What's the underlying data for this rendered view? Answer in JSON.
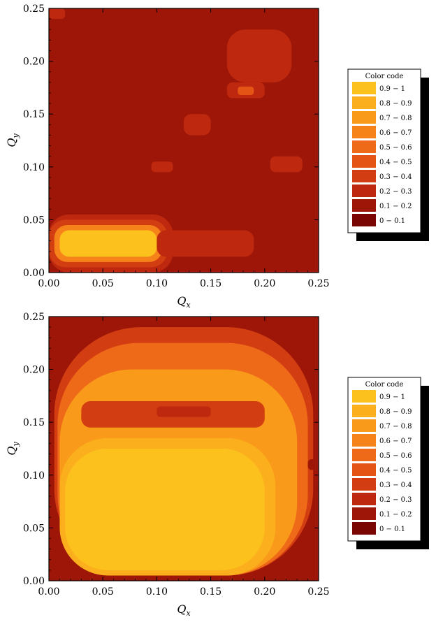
{
  "chart_data": [
    {
      "type": "heatmap",
      "subtype": "filled-contour",
      "xlabel": "Q",
      "xlabel_sub": "x",
      "ylabel": "Q",
      "ylabel_sub": "y",
      "xlim": [
        0.0,
        0.25
      ],
      "ylim": [
        0.0,
        0.25
      ],
      "xticks": [
        "0.00",
        "0.05",
        "0.10",
        "0.15",
        "0.20",
        "0.25"
      ],
      "yticks": [
        "0.00",
        "0.05",
        "0.10",
        "0.15",
        "0.20",
        "0.25"
      ],
      "background_level": 0.15,
      "regions": [
        {
          "level": 0.25,
          "x": [
            0.0,
            0.115
          ],
          "y": [
            0.0,
            0.055
          ]
        },
        {
          "level": 0.35,
          "x": [
            0.0,
            0.11
          ],
          "y": [
            0.005,
            0.05
          ]
        },
        {
          "level": 0.6,
          "x": [
            0.005,
            0.105
          ],
          "y": [
            0.01,
            0.045
          ]
        },
        {
          "level": 0.95,
          "x": [
            0.01,
            0.1
          ],
          "y": [
            0.015,
            0.04
          ]
        },
        {
          "level": 0.25,
          "x": [
            0.1,
            0.19
          ],
          "y": [
            0.015,
            0.04
          ]
        },
        {
          "level": 0.25,
          "x": [
            0.165,
            0.2
          ],
          "y": [
            0.165,
            0.18
          ]
        },
        {
          "level": 0.45,
          "x": [
            0.175,
            0.19
          ],
          "y": [
            0.168,
            0.176
          ]
        },
        {
          "level": 0.25,
          "x": [
            0.165,
            0.225
          ],
          "y": [
            0.18,
            0.23
          ]
        },
        {
          "level": 0.25,
          "x": [
            0.125,
            0.15
          ],
          "y": [
            0.13,
            0.15
          ]
        },
        {
          "level": 0.25,
          "x": [
            0.205,
            0.235
          ],
          "y": [
            0.095,
            0.11
          ]
        },
        {
          "level": 0.25,
          "x": [
            0.095,
            0.115
          ],
          "y": [
            0.095,
            0.105
          ]
        },
        {
          "level": 0.25,
          "x": [
            0.0,
            0.015
          ],
          "y": [
            0.24,
            0.25
          ]
        }
      ],
      "legend": {
        "title": "Color code",
        "position": "right",
        "entries": [
          {
            "label": "0.9 − 1",
            "color": "#fcc11d"
          },
          {
            "label": "0.8 − 0.9",
            "color": "#fbaf1c"
          },
          {
            "label": "0.7 − 0.8",
            "color": "#f99a1b"
          },
          {
            "label": "0.6 − 0.7",
            "color": "#f6821a"
          },
          {
            "label": "0.5 − 0.6",
            "color": "#ef6a18"
          },
          {
            "label": "0.4 − 0.5",
            "color": "#e45415"
          },
          {
            "label": "0.3 − 0.4",
            "color": "#d33d12"
          },
          {
            "label": "0.2 − 0.3",
            "color": "#bd280e"
          },
          {
            "label": "0.1 − 0.2",
            "color": "#9e1608"
          },
          {
            "label": "0 − 0.1",
            "color": "#7a0604"
          }
        ]
      }
    },
    {
      "type": "heatmap",
      "subtype": "filled-contour",
      "xlabel": "Q",
      "xlabel_sub": "x",
      "ylabel": "Q",
      "ylabel_sub": "y",
      "xlim": [
        0.0,
        0.25
      ],
      "ylim": [
        0.0,
        0.25
      ],
      "xticks": [
        "0.00",
        "0.05",
        "0.10",
        "0.15",
        "0.20",
        "0.25"
      ],
      "yticks": [
        "0.00",
        "0.05",
        "0.10",
        "0.15",
        "0.20",
        "0.25"
      ],
      "background_level": 0.15,
      "regions": [
        {
          "level": 0.35,
          "x": [
            0.005,
            0.245
          ],
          "y": [
            0.005,
            0.24
          ]
        },
        {
          "level": 0.55,
          "x": [
            0.008,
            0.24
          ],
          "y": [
            0.005,
            0.225
          ]
        },
        {
          "level": 0.75,
          "x": [
            0.01,
            0.23
          ],
          "y": [
            0.005,
            0.2
          ]
        },
        {
          "level": 0.35,
          "x": [
            0.03,
            0.2
          ],
          "y": [
            0.145,
            0.17
          ]
        },
        {
          "level": 0.25,
          "x": [
            0.1,
            0.15
          ],
          "y": [
            0.155,
            0.165
          ]
        },
        {
          "level": 0.85,
          "x": [
            0.01,
            0.21
          ],
          "y": [
            0.005,
            0.135
          ]
        },
        {
          "level": 0.95,
          "x": [
            0.015,
            0.2
          ],
          "y": [
            0.01,
            0.125
          ]
        },
        {
          "level": 0.15,
          "x": [
            0.24,
            0.25
          ],
          "y": [
            0.105,
            0.115
          ]
        },
        {
          "level": 0.15,
          "x": [
            0.005,
            0.015
          ],
          "y": [
            0.0,
            0.01
          ]
        }
      ],
      "legend": {
        "title": "Color code",
        "position": "right",
        "entries": [
          {
            "label": "0.9 − 1",
            "color": "#fcc11d"
          },
          {
            "label": "0.8 − 0.9",
            "color": "#fbaf1c"
          },
          {
            "label": "0.7 − 0.8",
            "color": "#f99a1b"
          },
          {
            "label": "0.6 − 0.7",
            "color": "#f6821a"
          },
          {
            "label": "0.5 − 0.6",
            "color": "#ef6a18"
          },
          {
            "label": "0.4 − 0.5",
            "color": "#e45415"
          },
          {
            "label": "0.3 − 0.4",
            "color": "#d33d12"
          },
          {
            "label": "0.2 − 0.3",
            "color": "#bd280e"
          },
          {
            "label": "0.1 − 0.2",
            "color": "#9e1608"
          },
          {
            "label": "0 − 0.1",
            "color": "#7a0604"
          }
        ]
      }
    }
  ]
}
